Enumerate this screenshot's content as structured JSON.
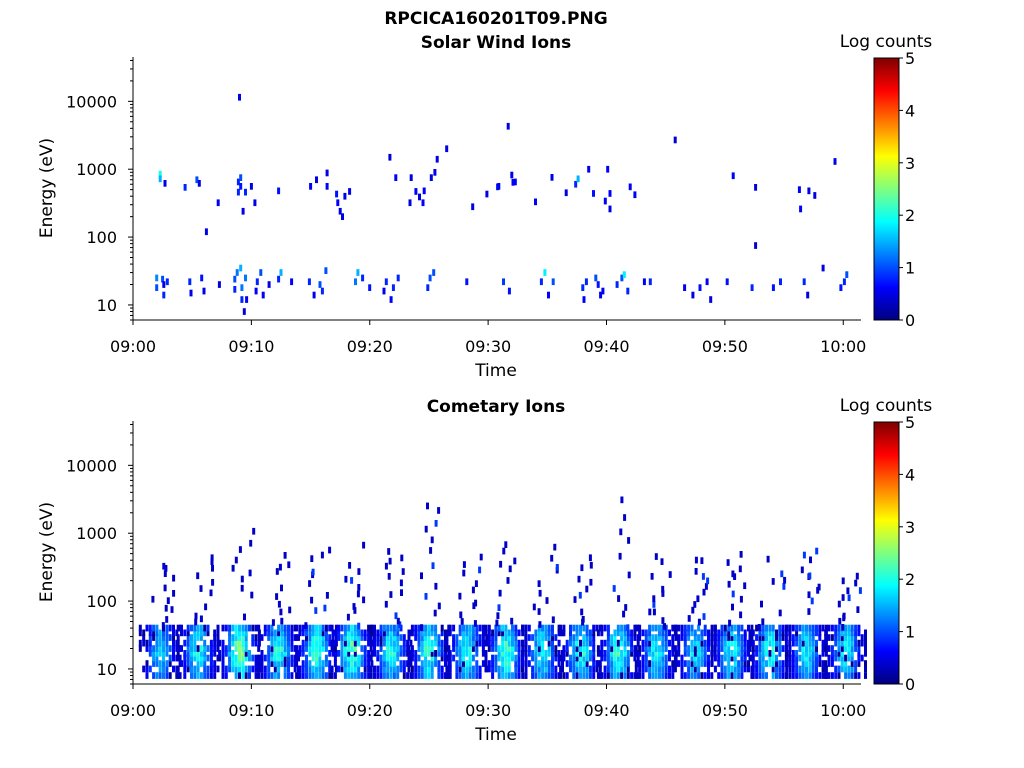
{
  "figure": {
    "filename_title": "RPCICA160201T09.PNG"
  },
  "colors": {
    "colormap": [
      "#00007f",
      "#0000ff",
      "#007fff",
      "#00ffff",
      "#7fff7f",
      "#ffff00",
      "#ff7f00",
      "#ff0000",
      "#7f0000"
    ]
  },
  "chart_data": [
    {
      "type": "heatmap",
      "title": "Solar Wind Ions",
      "xlabel": "Time",
      "ylabel": "Energy (eV)",
      "yscale": "log",
      "ylim": [
        6,
        45000
      ],
      "xlim": [
        "09:00",
        "10:01.5"
      ],
      "x_ticks": [
        "09:00",
        "09:10",
        "09:20",
        "09:30",
        "09:40",
        "09:50",
        "10:00"
      ],
      "y_ticks": [
        {
          "value": 10,
          "label": "10"
        },
        {
          "value": 100,
          "label": "100"
        },
        {
          "value": 1000,
          "label": "1000"
        },
        {
          "value": 10000,
          "label": "10000"
        }
      ],
      "colorbar": {
        "label": "Log counts",
        "range": [
          0,
          5
        ],
        "ticks": [
          "0",
          "1",
          "2",
          "3",
          "4",
          "5"
        ]
      },
      "cells": [
        [
          2.0,
          25,
          1.3
        ],
        [
          2.0,
          18,
          1.0
        ],
        [
          2.3,
          850,
          2.0
        ],
        [
          2.3,
          720,
          1.5
        ],
        [
          2.5,
          24,
          1.0
        ],
        [
          2.6,
          20,
          0.5
        ],
        [
          2.6,
          14,
          0.8
        ],
        [
          2.7,
          620,
          0.5
        ],
        [
          2.9,
          22,
          0.8
        ],
        [
          4.4,
          540,
          0.8
        ],
        [
          4.8,
          22,
          0.8
        ],
        [
          4.9,
          15,
          0.5
        ],
        [
          5.4,
          700,
          1.0
        ],
        [
          5.6,
          620,
          0.5
        ],
        [
          5.8,
          25,
          0.7
        ],
        [
          6.0,
          16,
          0.5
        ],
        [
          6.2,
          120,
          0.5
        ],
        [
          7.2,
          320,
          0.6
        ],
        [
          7.3,
          20,
          0.5
        ],
        [
          8.6,
          24,
          1.0
        ],
        [
          8.6,
          17,
          0.8
        ],
        [
          8.8,
          30,
          1.2
        ],
        [
          8.9,
          460,
          0.8
        ],
        [
          8.9,
          650,
          0.8
        ],
        [
          9.0,
          11500,
          0.5
        ],
        [
          9.1,
          750,
          1.0
        ],
        [
          9.1,
          560,
          0.7
        ],
        [
          9.1,
          35,
          1.5
        ],
        [
          9.2,
          18,
          1.2
        ],
        [
          9.2,
          12,
          0.8
        ],
        [
          9.3,
          240,
          0.5
        ],
        [
          9.4,
          8,
          0.5
        ],
        [
          9.5,
          460,
          0.8
        ],
        [
          9.5,
          25,
          1.2
        ],
        [
          9.6,
          12,
          0.6
        ],
        [
          10.0,
          560,
          0.5
        ],
        [
          10.3,
          320,
          0.5
        ],
        [
          10.4,
          16,
          0.6
        ],
        [
          10.5,
          22,
          0.8
        ],
        [
          10.8,
          30,
          1.0
        ],
        [
          11.0,
          14,
          0.6
        ],
        [
          11.5,
          20,
          0.5
        ],
        [
          12.3,
          24,
          0.8
        ],
        [
          12.3,
          480,
          0.7
        ],
        [
          12.5,
          30,
          1.5
        ],
        [
          13.4,
          22,
          0.6
        ],
        [
          14.9,
          22,
          0.8
        ],
        [
          15.0,
          560,
          0.6
        ],
        [
          15.3,
          14,
          0.5
        ],
        [
          15.5,
          700,
          0.5
        ],
        [
          15.8,
          20,
          1.0
        ],
        [
          16.0,
          16,
          0.8
        ],
        [
          16.3,
          32,
          1.0
        ],
        [
          16.4,
          560,
          0.6
        ],
        [
          16.4,
          880,
          0.5
        ],
        [
          17.2,
          430,
          0.7
        ],
        [
          17.3,
          320,
          0.6
        ],
        [
          17.5,
          240,
          0.5
        ],
        [
          17.7,
          200,
          0.5
        ],
        [
          17.9,
          400,
          0.5
        ],
        [
          18.3,
          470,
          0.5
        ],
        [
          18.8,
          22,
          1.2
        ],
        [
          19.0,
          30,
          1.5
        ],
        [
          19.4,
          25,
          0.8
        ],
        [
          20.0,
          18,
          0.7
        ],
        [
          21.2,
          16,
          0.5
        ],
        [
          21.4,
          22,
          0.8
        ],
        [
          21.7,
          1500,
          0.4
        ],
        [
          21.8,
          12,
          0.6
        ],
        [
          22.0,
          18,
          0.8
        ],
        [
          22.2,
          750,
          0.6
        ],
        [
          22.4,
          25,
          0.8
        ],
        [
          23.4,
          320,
          0.5
        ],
        [
          23.5,
          750,
          0.5
        ],
        [
          23.9,
          470,
          0.6
        ],
        [
          24.2,
          390,
          0.5
        ],
        [
          24.5,
          320,
          0.6
        ],
        [
          24.6,
          480,
          0.6
        ],
        [
          24.9,
          18,
          0.8
        ],
        [
          25.1,
          25,
          1.0
        ],
        [
          25.2,
          750,
          0.5
        ],
        [
          25.4,
          30,
          1.0
        ],
        [
          25.5,
          900,
          0.5
        ],
        [
          25.7,
          1400,
          0.5
        ],
        [
          26.5,
          2000,
          0.5
        ],
        [
          28.2,
          22,
          0.7
        ],
        [
          28.7,
          280,
          0.5
        ],
        [
          29.9,
          430,
          0.5
        ],
        [
          30.8,
          550,
          0.7
        ],
        [
          30.9,
          560,
          0.5
        ],
        [
          31.3,
          22,
          0.9
        ],
        [
          31.7,
          4300,
          0.5
        ],
        [
          31.8,
          16,
          0.7
        ],
        [
          32.0,
          820,
          0.5
        ],
        [
          32.1,
          640,
          0.6
        ],
        [
          32.3,
          650,
          0.6
        ],
        [
          34.0,
          330,
          0.6
        ],
        [
          34.5,
          22,
          0.8
        ],
        [
          34.8,
          30,
          1.8
        ],
        [
          35.1,
          14,
          0.6
        ],
        [
          35.4,
          760,
          0.5
        ],
        [
          35.5,
          22,
          1.0
        ],
        [
          36.6,
          450,
          0.5
        ],
        [
          37.4,
          600,
          0.8
        ],
        [
          37.6,
          720,
          1.5
        ],
        [
          38.0,
          18,
          0.8
        ],
        [
          38.1,
          12,
          0.6
        ],
        [
          38.3,
          22,
          0.8
        ],
        [
          38.5,
          1000,
          0.5
        ],
        [
          38.9,
          440,
          0.7
        ],
        [
          39.1,
          25,
          1.0
        ],
        [
          39.3,
          20,
          0.7
        ],
        [
          39.5,
          14,
          0.5
        ],
        [
          39.7,
          16,
          0.6
        ],
        [
          39.9,
          340,
          0.6
        ],
        [
          40.1,
          1000,
          0.6
        ],
        [
          40.3,
          260,
          0.5
        ],
        [
          40.3,
          440,
          0.6
        ],
        [
          40.9,
          20,
          0.8
        ],
        [
          41.3,
          25,
          1.0
        ],
        [
          41.5,
          28,
          1.8
        ],
        [
          41.8,
          16,
          0.8
        ],
        [
          42.0,
          550,
          0.6
        ],
        [
          42.4,
          420,
          0.6
        ],
        [
          43.2,
          22,
          0.6
        ],
        [
          43.7,
          22,
          0.8
        ],
        [
          45.8,
          2700,
          0.4
        ],
        [
          46.6,
          18,
          0.6
        ],
        [
          47.3,
          14,
          0.5
        ],
        [
          47.9,
          18,
          0.7
        ],
        [
          48.5,
          22,
          0.6
        ],
        [
          48.8,
          12,
          0.5
        ],
        [
          50.2,
          22,
          0.7
        ],
        [
          50.7,
          800,
          0.6
        ],
        [
          52.3,
          18,
          0.8
        ],
        [
          52.6,
          540,
          0.5
        ],
        [
          52.6,
          75,
          0.4
        ],
        [
          54.1,
          18,
          0.7
        ],
        [
          54.7,
          22,
          0.8
        ],
        [
          56.3,
          500,
          0.6
        ],
        [
          56.4,
          260,
          0.6
        ],
        [
          56.7,
          22,
          0.8
        ],
        [
          57.0,
          14,
          0.5
        ],
        [
          57.1,
          480,
          0.5
        ],
        [
          57.6,
          410,
          0.5
        ],
        [
          58.3,
          35,
          0.5
        ],
        [
          59.3,
          1300,
          0.5
        ],
        [
          59.8,
          18,
          0.7
        ],
        [
          60.1,
          22,
          0.8
        ],
        [
          60.3,
          28,
          1.0
        ]
      ]
    },
    {
      "type": "heatmap",
      "title": "Cometary Ions",
      "xlabel": "Time",
      "ylabel": "Energy (eV)",
      "yscale": "log",
      "ylim": [
        6,
        45000
      ],
      "xlim": [
        "09:00",
        "10:01.5"
      ],
      "x_ticks": [
        "09:00",
        "09:10",
        "09:20",
        "09:30",
        "09:40",
        "09:50",
        "10:00"
      ],
      "y_ticks": [
        {
          "value": 10,
          "label": "10"
        },
        {
          "value": 100,
          "label": "100"
        },
        {
          "value": 1000,
          "label": "1000"
        },
        {
          "value": 10000,
          "label": "10000"
        }
      ],
      "colorbar": {
        "label": "Log counts",
        "range": [
          0,
          5
        ],
        "ticks": [
          "0",
          "1",
          "2",
          "3",
          "4",
          "5"
        ]
      },
      "bursts": [
        {
          "t": 2.3,
          "peak": 2.0,
          "hi": 340
        },
        {
          "t": 5.5,
          "peak": 2.3,
          "hi": 480
        },
        {
          "t": 9.0,
          "peak": 2.9,
          "hi": 1100
        },
        {
          "t": 12.3,
          "peak": 2.4,
          "hi": 560
        },
        {
          "t": 15.5,
          "peak": 2.6,
          "hi": 620
        },
        {
          "t": 18.5,
          "peak": 2.7,
          "hi": 620
        },
        {
          "t": 21.8,
          "peak": 2.3,
          "hi": 560
        },
        {
          "t": 25.0,
          "peak": 2.5,
          "hi": 2800
        },
        {
          "t": 28.2,
          "peak": 2.3,
          "hi": 560
        },
        {
          "t": 31.5,
          "peak": 2.6,
          "hi": 620
        },
        {
          "t": 34.6,
          "peak": 2.3,
          "hi": 600
        },
        {
          "t": 37.8,
          "peak": 2.4,
          "hi": 420
        },
        {
          "t": 41.0,
          "peak": 2.5,
          "hi": 3000
        },
        {
          "t": 44.2,
          "peak": 2.2,
          "hi": 430
        },
        {
          "t": 47.5,
          "peak": 2.1,
          "hi": 430
        },
        {
          "t": 50.6,
          "peak": 2.3,
          "hi": 460
        },
        {
          "t": 53.8,
          "peak": 2.4,
          "hi": 460
        },
        {
          "t": 56.9,
          "peak": 2.2,
          "hi": 560
        },
        {
          "t": 60.2,
          "peak": 2.3,
          "hi": 220
        }
      ]
    }
  ]
}
